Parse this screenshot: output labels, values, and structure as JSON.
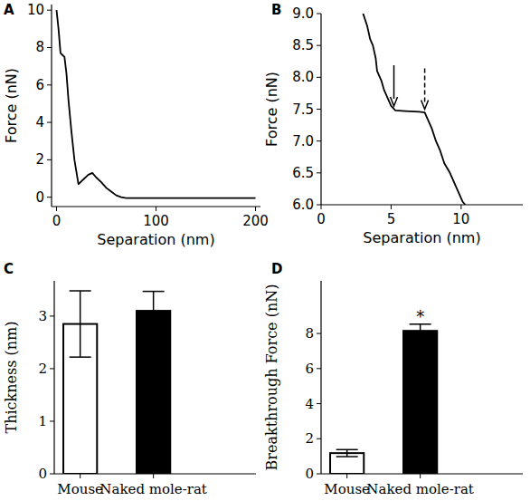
{
  "chart_data": [
    {
      "type": "line",
      "panel": "A",
      "x_label": "Separation (nm)",
      "y_label": "Force (nN)",
      "xlim": [
        -5,
        205
      ],
      "ylim": [
        -0.5,
        10.3
      ],
      "xticks": [
        0,
        100,
        200
      ],
      "yticks": [
        0,
        2,
        4,
        6,
        8,
        10
      ],
      "x": [
        0,
        2,
        4,
        6,
        8,
        10,
        12,
        15,
        18,
        22,
        25,
        28,
        32,
        36,
        40,
        45,
        50,
        55,
        60,
        65,
        70,
        100,
        150,
        200
      ],
      "series": [
        {
          "color": "#000000",
          "values": [
            10,
            9.0,
            7.7,
            7.6,
            7.5,
            6.6,
            5.2,
            3.5,
            2.0,
            0.7,
            0.85,
            1.0,
            1.2,
            1.3,
            1.05,
            0.8,
            0.5,
            0.3,
            0.1,
            0.0,
            -0.05,
            -0.05,
            -0.05,
            -0.05
          ]
        }
      ]
    },
    {
      "type": "line",
      "panel": "B",
      "x_label": "Separation (nm)",
      "y_label": "Force (nN)",
      "xlim": [
        0,
        14.4
      ],
      "ylim": [
        6,
        9
      ],
      "xticks": [
        0,
        5,
        10
      ],
      "yticks": [
        {
          "value": 6,
          "label": "6.0"
        },
        {
          "value": 6.5,
          "label": "6.5"
        },
        {
          "value": 7,
          "label": "7.0"
        },
        {
          "value": 7.5,
          "label": "7.5"
        },
        {
          "value": 8,
          "label": "8.0"
        },
        {
          "value": 8.5,
          "label": "8.5"
        },
        {
          "value": 9,
          "label": "9.0"
        }
      ],
      "x": [
        3.0,
        3.3,
        3.5,
        3.7,
        3.9,
        4.0,
        4.3,
        4.5,
        4.8,
        5.0,
        5.3,
        6.0,
        7.0,
        7.4,
        7.6,
        7.9,
        8.2,
        8.5,
        8.8,
        9.2,
        9.5,
        9.8,
        10.1,
        10.3
      ],
      "series": [
        {
          "color": "#000000",
          "values": [
            9.0,
            8.8,
            8.6,
            8.5,
            8.3,
            8.1,
            7.95,
            7.8,
            7.65,
            7.55,
            7.48,
            7.47,
            7.46,
            7.45,
            7.35,
            7.2,
            7.0,
            6.85,
            6.65,
            6.5,
            6.35,
            6.2,
            6.05,
            6.0
          ]
        }
      ],
      "annotations": [
        {
          "x": 5.2,
          "y": 7.55,
          "line_style": "solid"
        },
        {
          "x": 7.4,
          "y": 7.5,
          "line_style": "dashed"
        }
      ]
    },
    {
      "type": "bar",
      "panel": "C",
      "y_label": "Thickness (nm)",
      "categories": [
        "Mouse",
        "Naked mole-rat"
      ],
      "values": [
        2.85,
        3.1
      ],
      "errors": [
        0.63,
        0.37
      ],
      "colors": [
        "#ffffff",
        "#000000"
      ],
      "ylim": [
        0,
        3.67
      ],
      "yticks": [
        0,
        1,
        2,
        3
      ]
    },
    {
      "type": "bar",
      "panel": "D",
      "y_label": "Breakthrough Force (nN)",
      "categories": [
        "Mouse",
        "Naked mole-rat"
      ],
      "values": [
        1.18,
        8.15
      ],
      "errors": [
        0.2,
        0.38
      ],
      "colors": [
        "#ffffff",
        "#000000"
      ],
      "ylim": [
        0,
        11
      ],
      "yticks": [
        0,
        2,
        4,
        6,
        8
      ],
      "annotations": [
        {
          "text": "*",
          "x": "Naked mole-rat"
        }
      ]
    }
  ]
}
